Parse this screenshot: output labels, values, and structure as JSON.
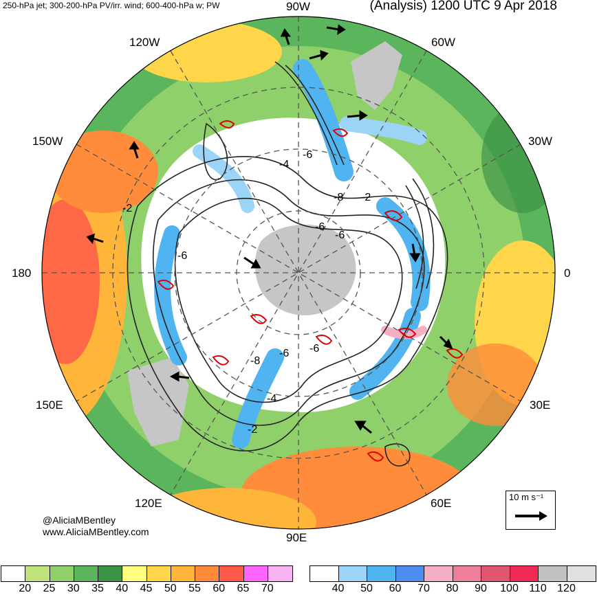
{
  "header": {
    "left_title": "250-hPa jet; 300-200-hPa PV/irr. wind; 600-400-hPa w; PW",
    "right_title": "(Analysis) 1200 UTC 9 Apr 2018"
  },
  "longitude_labels": {
    "top": "90W",
    "bottom": "90E",
    "left": "180",
    "right": "0",
    "upper_left_inner": "120W",
    "upper_left_outer": "150W",
    "upper_right_inner": "60W",
    "upper_right_outer": "30W",
    "lower_left_outer": "150E",
    "lower_left_inner": "120E",
    "lower_right_outer": "30E",
    "lower_right_inner": "60E"
  },
  "contour_labels": [
    "-2",
    "-4",
    "-6",
    "-6",
    "-8",
    "-2",
    "-6",
    "-6",
    "-6",
    "-8",
    "-4",
    "-2",
    "-6"
  ],
  "credits": {
    "handle": "@AliciaMBentley",
    "website": "www.AliciaMBentley.com"
  },
  "scale_vector": {
    "label": "10 m s⁻¹"
  },
  "colorbar_pw": {
    "colors": [
      "#ffffff",
      "#bfe37a",
      "#8fd06b",
      "#5bb55c",
      "#3d9447",
      "#ffff80",
      "#ffd54a",
      "#ffb43a",
      "#ff8c3a",
      "#ff5a4a",
      "#ff66ff",
      "#f7b3f2"
    ],
    "ticks": [
      "20",
      "25",
      "30",
      "35",
      "40",
      "45",
      "50",
      "55",
      "60",
      "65",
      "70"
    ]
  },
  "colorbar_jet": {
    "colors": [
      "#ffffff",
      "#9bd4f7",
      "#4fb4ef",
      "#4d8df0",
      "#f3b0c5",
      "#ee7f9a",
      "#e0566e",
      "#ee2a55",
      "#c2c2c2",
      "#e0e0e0"
    ],
    "ticks": [
      "40",
      "50",
      "60",
      "70",
      "80",
      "90",
      "100",
      "110",
      "120"
    ]
  },
  "colors": {
    "moisture_green": "#5bb55c",
    "moisture_orange": "#ff9a3a",
    "jet_blue": "#4fb4ef",
    "land_gray": "#c6c6c6",
    "pv_contour": "#222222",
    "ascent_red": "#e00000"
  }
}
